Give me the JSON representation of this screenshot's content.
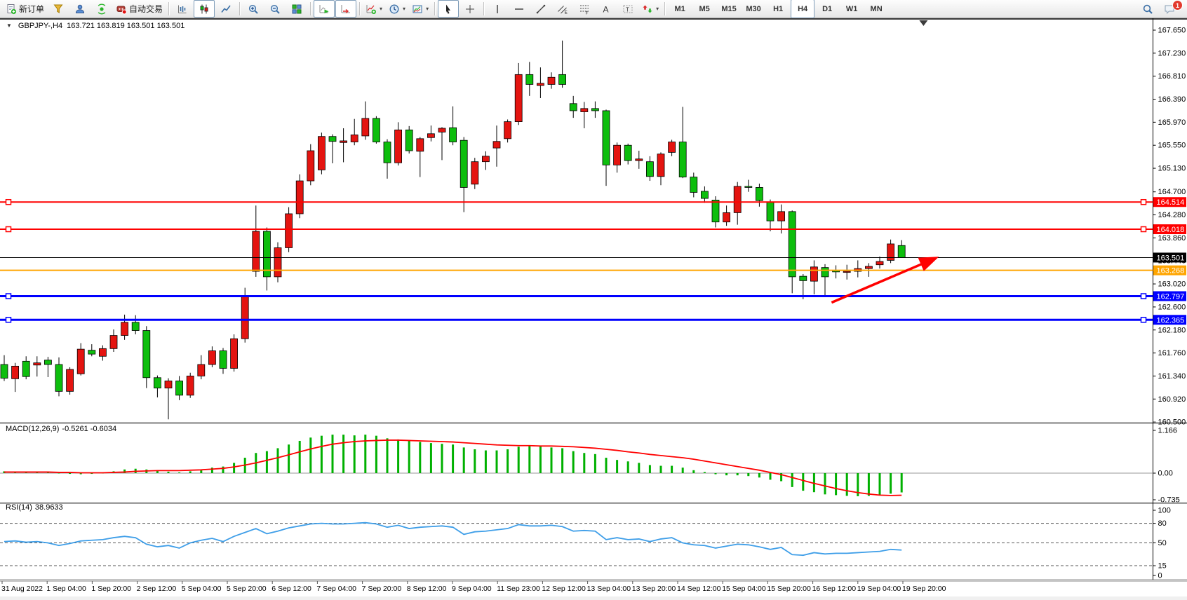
{
  "toolbar": {
    "buttons": [
      {
        "name": "new-order",
        "icon": "new-order-icon",
        "label": "新订单"
      },
      {
        "name": "quotes",
        "icon": "funnel-icon"
      },
      {
        "name": "profile",
        "icon": "profile-icon"
      },
      {
        "name": "market-signal",
        "icon": "signal-icon"
      },
      {
        "name": "auto-trading",
        "icon": "autotrading-icon",
        "label": "自动交易"
      },
      {
        "sep": true
      },
      {
        "name": "bar-chart-mode",
        "icon": "bar-chart-icon"
      },
      {
        "name": "candlestick-mode",
        "icon": "candlestick-icon",
        "active": true
      },
      {
        "name": "line-chart-mode",
        "icon": "line-chart-icon"
      },
      {
        "sep": true
      },
      {
        "name": "zoom-in",
        "icon": "zoom-in-icon"
      },
      {
        "name": "zoom-out",
        "icon": "zoom-out-icon"
      },
      {
        "name": "tile-windows",
        "icon": "tile-windows-icon"
      },
      {
        "sep": true
      },
      {
        "name": "auto-scroll",
        "icon": "auto-scroll-icon",
        "active": true
      },
      {
        "name": "chart-shift",
        "icon": "chart-shift-icon",
        "active": true
      },
      {
        "sep": true
      },
      {
        "name": "indicators",
        "icon": "indicators-icon",
        "dropdown": true
      },
      {
        "name": "periods",
        "icon": "clock-icon",
        "dropdown": true
      },
      {
        "name": "templates",
        "icon": "templates-icon",
        "dropdown": true
      },
      {
        "sep": true
      },
      {
        "name": "cursor",
        "icon": "cursor-icon",
        "active": true
      },
      {
        "name": "crosshair",
        "icon": "crosshair-icon"
      },
      {
        "sep": true
      },
      {
        "name": "vertical-line",
        "icon": "vertical-line-icon"
      },
      {
        "name": "horizontal-line",
        "icon": "horizontal-line-icon"
      },
      {
        "name": "trendline",
        "icon": "trendline-icon"
      },
      {
        "name": "equidistant-channel",
        "icon": "channel-icon"
      },
      {
        "name": "fibonacci",
        "icon": "fibonacci-icon"
      },
      {
        "name": "text",
        "icon": "text-icon"
      },
      {
        "name": "text-label",
        "icon": "text-label-icon"
      },
      {
        "name": "arrows",
        "icon": "arrows-icon",
        "dropdown": true
      },
      {
        "sep": true
      }
    ],
    "timeframes": [
      {
        "label": "M1"
      },
      {
        "label": "M5"
      },
      {
        "label": "M15"
      },
      {
        "label": "M30"
      },
      {
        "label": "H1"
      },
      {
        "label": "H4",
        "active": true
      },
      {
        "label": "D1"
      },
      {
        "label": "W1"
      },
      {
        "label": "MN"
      }
    ],
    "notification_badge": "1"
  },
  "chart": {
    "collapse_arrow": "▼",
    "symbol_period": "GBPJPY-,H4",
    "ohlc": "163.721 163.819 163.501 163.501"
  },
  "price_axis": {
    "ticks": [
      "167.650",
      "167.230",
      "166.810",
      "166.390",
      "165.970",
      "165.550",
      "165.130",
      "164.700",
      "164.280",
      "163.860",
      "163.440",
      "163.020",
      "162.600",
      "162.180",
      "161.760",
      "161.340",
      "160.920",
      "160.500"
    ]
  },
  "hlines": [
    {
      "name": "resistance-line-1",
      "value": 164.514,
      "label": "164.514",
      "color": "#FF0000",
      "width": 2,
      "handles": true
    },
    {
      "name": "resistance-line-2",
      "value": 164.018,
      "label": "164.018",
      "color": "#FF0000",
      "width": 2,
      "handles": true
    },
    {
      "name": "current-price-line",
      "value": 163.501,
      "label": "163.501",
      "color": "#000000",
      "width": 1,
      "handles": false
    },
    {
      "name": "pivot-line",
      "value": 163.268,
      "label": "163.268",
      "color": "#FFA500",
      "width": 2,
      "handles": false
    },
    {
      "name": "support-line-1",
      "value": 162.797,
      "label": "162.797",
      "color": "#0000FF",
      "width": 3,
      "handles": true
    },
    {
      "name": "support-line-2",
      "value": 162.365,
      "label": "162.365",
      "color": "#0000FF",
      "width": 3,
      "handles": true
    }
  ],
  "time_axis": [
    "31 Aug 2022",
    "1 Sep 04:00",
    "1 Sep 20:00",
    "2 Sep 12:00",
    "5 Sep 04:00",
    "5 Sep 20:00",
    "6 Sep 12:00",
    "7 Sep 04:00",
    "7 Sep 20:00",
    "8 Sep 12:00",
    "9 Sep 04:00",
    "11 Sep 23:00",
    "12 Sep 12:00",
    "13 Sep 04:00",
    "13 Sep 20:00",
    "14 Sep 12:00",
    "15 Sep 04:00",
    "15 Sep 20:00",
    "16 Sep 12:00",
    "19 Sep 04:00",
    "19 Sep 20:00"
  ],
  "macd_panel": {
    "label": "MACD(12,26,9)",
    "values": "-0.5261 -0.6034",
    "scale": [
      "1.166",
      "0.00",
      "-0.735"
    ]
  },
  "rsi_panel": {
    "label": "RSI(14)",
    "value": "38.9633",
    "scale": [
      "100",
      "80",
      "50",
      "15",
      "0"
    ]
  },
  "chart_data": {
    "type": "candlestick",
    "symbol": "GBPJPY-",
    "period": "H4",
    "ylim": [
      160.47,
      167.87
    ],
    "up_color": "#E41410",
    "down_color": "#0DBE0D",
    "x_labels": [
      "31 Aug 2022",
      "1 Sep 04:00",
      "1 Sep 20:00",
      "2 Sep 12:00",
      "5 Sep 04:00",
      "5 Sep 20:00",
      "6 Sep 12:00",
      "7 Sep 04:00",
      "7 Sep 20:00",
      "8 Sep 12:00",
      "9 Sep 04:00",
      "11 Sep 23:00",
      "12 Sep 12:00",
      "13 Sep 04:00",
      "13 Sep 20:00",
      "14 Sep 12:00",
      "15 Sep 04:00",
      "15 Sep 20:00",
      "16 Sep 12:00",
      "19 Sep 04:00",
      "19 Sep 20:00"
    ],
    "candles": {
      "open": [
        161.55,
        161.29,
        161.61,
        161.54,
        161.63,
        161.55,
        161.06,
        161.38,
        161.81,
        161.7,
        161.84,
        162.08,
        162.32,
        162.17,
        161.31,
        161.12,
        161.25,
        160.99,
        161.34,
        161.55,
        161.8,
        161.48,
        162.02,
        163.25,
        163.98,
        163.15,
        163.68,
        164.3,
        164.9,
        165.1,
        165.71,
        165.6,
        165.61,
        165.72,
        166.04,
        165.61,
        165.23,
        165.83,
        165.44,
        165.69,
        165.79,
        165.87,
        165.64,
        164.84,
        165.25,
        165.5,
        165.67,
        165.98,
        166.84,
        166.64,
        166.66,
        166.84,
        166.31,
        166.16,
        166.22,
        166.18,
        165.19,
        165.55,
        165.27,
        165.25,
        164.98,
        165.42,
        165.61,
        164.97,
        164.71,
        164.55,
        164.15,
        164.32,
        164.8,
        164.78,
        164.51,
        164.17,
        164.34,
        163.16,
        163.07,
        163.32,
        163.27,
        163.23,
        163.25,
        163.3,
        163.37,
        163.45,
        163.721
      ],
      "high": [
        161.72,
        161.58,
        161.7,
        161.7,
        161.69,
        161.68,
        161.5,
        161.94,
        161.92,
        161.9,
        162.19,
        162.46,
        162.45,
        162.25,
        161.35,
        161.3,
        161.34,
        161.4,
        161.72,
        161.88,
        161.85,
        162.1,
        162.95,
        164.45,
        164.05,
        163.78,
        164.42,
        165.02,
        165.57,
        165.78,
        165.75,
        165.86,
        166.03,
        166.35,
        166.08,
        165.66,
        165.97,
        165.9,
        165.7,
        165.91,
        165.88,
        166.26,
        165.7,
        165.32,
        165.44,
        165.91,
        166.02,
        167.05,
        167.07,
        166.97,
        166.88,
        167.46,
        166.45,
        166.34,
        166.35,
        166.2,
        165.6,
        165.58,
        165.45,
        165.35,
        165.42,
        165.65,
        166.25,
        165.05,
        164.8,
        164.62,
        164.45,
        164.88,
        164.92,
        164.85,
        164.56,
        164.47,
        164.36,
        163.2,
        163.45,
        163.38,
        163.36,
        163.37,
        163.45,
        163.4,
        163.52,
        163.83,
        163.819
      ],
      "low": [
        161.25,
        161.05,
        161.28,
        161.33,
        161.32,
        160.97,
        161.0,
        161.35,
        161.7,
        161.62,
        161.78,
        162.0,
        162.1,
        161.12,
        160.95,
        160.55,
        160.9,
        160.94,
        161.28,
        161.5,
        161.38,
        161.42,
        161.95,
        163.15,
        162.9,
        163.05,
        163.6,
        164.22,
        164.82,
        165.02,
        165.22,
        165.24,
        165.55,
        165.65,
        165.58,
        164.94,
        165.18,
        165.4,
        164.97,
        165.62,
        165.28,
        165.55,
        164.33,
        164.75,
        165.1,
        165.16,
        165.6,
        165.92,
        166.45,
        166.41,
        166.58,
        166.6,
        166.05,
        165.86,
        166.05,
        164.81,
        165.05,
        165.2,
        165.12,
        164.9,
        164.82,
        165.35,
        164.95,
        164.6,
        164.5,
        164.05,
        164.08,
        164.1,
        164.7,
        164.43,
        163.98,
        163.94,
        162.85,
        162.74,
        162.83,
        162.81,
        163.12,
        163.1,
        163.14,
        163.15,
        163.3,
        163.4,
        163.501
      ],
      "close": [
        161.3,
        161.52,
        161.33,
        161.58,
        161.55,
        161.06,
        161.46,
        161.83,
        161.74,
        161.84,
        162.08,
        162.32,
        162.17,
        161.31,
        161.12,
        161.25,
        160.99,
        161.34,
        161.55,
        161.8,
        161.48,
        162.02,
        162.8,
        163.98,
        163.15,
        163.68,
        164.3,
        164.9,
        165.45,
        165.71,
        165.62,
        165.63,
        165.74,
        166.04,
        165.61,
        165.23,
        165.83,
        165.45,
        165.67,
        165.76,
        165.86,
        165.61,
        164.78,
        165.25,
        165.35,
        165.62,
        165.98,
        166.84,
        166.66,
        166.68,
        166.79,
        166.66,
        166.18,
        166.22,
        166.18,
        165.19,
        165.55,
        165.27,
        165.3,
        164.98,
        165.39,
        165.61,
        164.97,
        164.69,
        164.58,
        164.15,
        164.32,
        164.8,
        164.78,
        164.54,
        164.17,
        164.34,
        163.15,
        163.08,
        163.33,
        163.15,
        163.24,
        163.25,
        163.3,
        163.34,
        163.43,
        163.75,
        163.501
      ]
    },
    "indicators": [
      {
        "name": "MACD(12,26,9)",
        "current_main": -0.5261,
        "current_signal": -0.6034,
        "ylim": [
          -0.735,
          1.166
        ],
        "hist_color": "#00B000",
        "signal_color": "#FF0000",
        "histogram": [
          0.05,
          0.04,
          0.03,
          0.03,
          0.02,
          0.0,
          -0.02,
          -0.03,
          -0.02,
          0.0,
          0.05,
          0.1,
          0.12,
          0.1,
          0.06,
          0.04,
          0.02,
          0.05,
          0.1,
          0.15,
          0.18,
          0.28,
          0.42,
          0.55,
          0.6,
          0.68,
          0.78,
          0.88,
          0.97,
          1.02,
          1.05,
          1.05,
          1.03,
          1.05,
          1.02,
          0.95,
          0.92,
          0.88,
          0.85,
          0.82,
          0.8,
          0.78,
          0.7,
          0.65,
          0.62,
          0.62,
          0.65,
          0.72,
          0.75,
          0.73,
          0.7,
          0.68,
          0.6,
          0.55,
          0.52,
          0.42,
          0.36,
          0.32,
          0.28,
          0.22,
          0.2,
          0.2,
          0.15,
          0.08,
          0.03,
          -0.03,
          -0.06,
          -0.06,
          -0.08,
          -0.12,
          -0.18,
          -0.22,
          -0.38,
          -0.48,
          -0.52,
          -0.58,
          -0.6,
          -0.62,
          -0.63,
          -0.62,
          -0.6,
          -0.56,
          -0.5261
        ],
        "signal": [
          0.03,
          0.03,
          0.03,
          0.03,
          0.03,
          0.02,
          0.02,
          0.01,
          0.01,
          0.01,
          0.02,
          0.03,
          0.05,
          0.06,
          0.07,
          0.07,
          0.07,
          0.08,
          0.09,
          0.11,
          0.13,
          0.17,
          0.22,
          0.28,
          0.35,
          0.42,
          0.5,
          0.58,
          0.66,
          0.73,
          0.79,
          0.83,
          0.86,
          0.88,
          0.89,
          0.9,
          0.9,
          0.89,
          0.88,
          0.87,
          0.86,
          0.85,
          0.83,
          0.81,
          0.79,
          0.77,
          0.76,
          0.75,
          0.75,
          0.74,
          0.74,
          0.73,
          0.72,
          0.7,
          0.68,
          0.65,
          0.62,
          0.58,
          0.55,
          0.51,
          0.48,
          0.45,
          0.42,
          0.38,
          0.33,
          0.28,
          0.23,
          0.18,
          0.13,
          0.08,
          0.02,
          -0.04,
          -0.12,
          -0.2,
          -0.28,
          -0.35,
          -0.42,
          -0.48,
          -0.53,
          -0.57,
          -0.6,
          -0.61,
          -0.6034
        ]
      },
      {
        "name": "RSI(14)",
        "current": 38.9633,
        "ylim": [
          0,
          100
        ],
        "color": "#3E9EE8",
        "levels": [
          80,
          50,
          15
        ],
        "values": [
          52,
          53,
          51,
          52,
          50,
          46,
          49,
          53,
          54,
          55,
          58,
          60,
          58,
          48,
          44,
          46,
          42,
          50,
          54,
          57,
          52,
          60,
          66,
          72,
          64,
          68,
          73,
          76,
          79,
          80,
          79,
          79,
          80,
          81,
          79,
          74,
          77,
          72,
          74,
          75,
          76,
          74,
          63,
          67,
          68,
          70,
          72,
          78,
          76,
          76,
          77,
          75,
          68,
          69,
          68,
          55,
          58,
          55,
          56,
          52,
          56,
          58,
          50,
          47,
          46,
          42,
          45,
          48,
          47,
          44,
          40,
          43,
          32,
          31,
          35,
          33,
          34,
          34,
          35,
          36,
          37,
          40,
          38.96
        ]
      }
    ],
    "annotations": [
      {
        "type": "trend-arrow",
        "color": "#FF0000",
        "from": {
          "index": 75.6,
          "price": 162.68
        },
        "to": {
          "index": 85.1,
          "price": 163.49
        }
      },
      {
        "type": "shift-marker",
        "index": 84
      }
    ]
  }
}
